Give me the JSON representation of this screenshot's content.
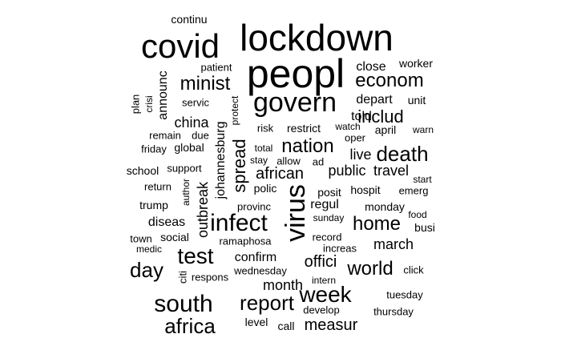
{
  "word_cloud": {
    "colors": {
      "background": "#ffffff",
      "text": "#000000"
    },
    "words": [
      {
        "text": "lockdown"
      },
      {
        "text": "peopl"
      },
      {
        "text": "covid"
      },
      {
        "text": "govern"
      },
      {
        "text": "virus"
      },
      {
        "text": "south"
      },
      {
        "text": "infect"
      },
      {
        "text": "week"
      },
      {
        "text": "nation"
      },
      {
        "text": "death"
      },
      {
        "text": "econom"
      },
      {
        "text": "report"
      },
      {
        "text": "test"
      },
      {
        "text": "africa"
      },
      {
        "text": "home"
      },
      {
        "text": "world"
      },
      {
        "text": "day"
      },
      {
        "text": "spread"
      },
      {
        "text": "minist"
      },
      {
        "text": "includ"
      },
      {
        "text": "african"
      },
      {
        "text": "offici"
      },
      {
        "text": "measur"
      },
      {
        "text": "month"
      },
      {
        "text": "march"
      },
      {
        "text": "public"
      },
      {
        "text": "travel"
      },
      {
        "text": "close"
      },
      {
        "text": "confirm"
      },
      {
        "text": "outbreak"
      },
      {
        "text": "johannesburg"
      },
      {
        "text": "china"
      },
      {
        "text": "live"
      },
      {
        "text": "told"
      },
      {
        "text": "depart"
      },
      {
        "text": "announc"
      },
      {
        "text": "diseas"
      },
      {
        "text": "unit"
      },
      {
        "text": "worker"
      },
      {
        "text": "continu"
      },
      {
        "text": "patient"
      },
      {
        "text": "plan"
      },
      {
        "text": "crisi"
      },
      {
        "text": "servic"
      },
      {
        "text": "protect"
      },
      {
        "text": "risk"
      },
      {
        "text": "restrict"
      },
      {
        "text": "watch"
      },
      {
        "text": "april"
      },
      {
        "text": "warn"
      },
      {
        "text": "oper"
      },
      {
        "text": "remain"
      },
      {
        "text": "due"
      },
      {
        "text": "friday"
      },
      {
        "text": "global"
      },
      {
        "text": "total"
      },
      {
        "text": "stay"
      },
      {
        "text": "allow"
      },
      {
        "text": "ad"
      },
      {
        "text": "school"
      },
      {
        "text": "support"
      },
      {
        "text": "start"
      },
      {
        "text": "return"
      },
      {
        "text": "author"
      },
      {
        "text": "polic"
      },
      {
        "text": "posit"
      },
      {
        "text": "hospit"
      },
      {
        "text": "emerg"
      },
      {
        "text": "regul"
      },
      {
        "text": "monday"
      },
      {
        "text": "trump"
      },
      {
        "text": "provinc"
      },
      {
        "text": "sunday"
      },
      {
        "text": "food"
      },
      {
        "text": "busi"
      },
      {
        "text": "town"
      },
      {
        "text": "social"
      },
      {
        "text": "ramaphosa"
      },
      {
        "text": "record"
      },
      {
        "text": "medic"
      },
      {
        "text": "increas"
      },
      {
        "text": "citi"
      },
      {
        "text": "respons"
      },
      {
        "text": "wednesday"
      },
      {
        "text": "click"
      },
      {
        "text": "intern"
      },
      {
        "text": "tuesday"
      },
      {
        "text": "develop"
      },
      {
        "text": "thursday"
      },
      {
        "text": "level"
      },
      {
        "text": "call"
      }
    ]
  }
}
